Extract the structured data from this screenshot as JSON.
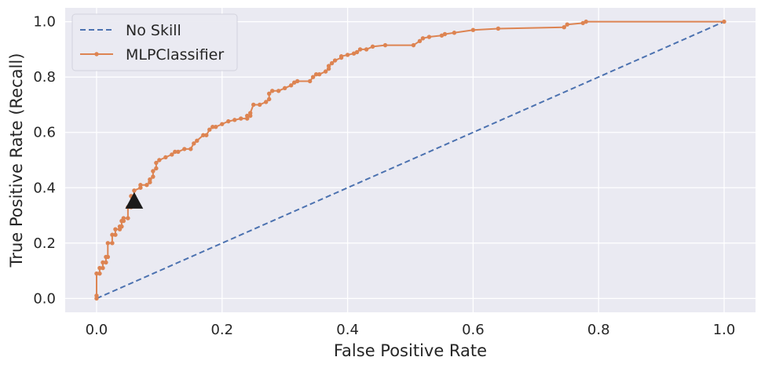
{
  "chart_data": {
    "type": "line",
    "xlabel": "False Positive Rate",
    "ylabel": "True Positive Rate (Recall)",
    "xlim": [
      -0.05,
      1.05
    ],
    "ylim": [
      -0.05,
      1.05
    ],
    "xticks": [
      0.0,
      0.2,
      0.4,
      0.6,
      0.8,
      1.0
    ],
    "xtick_labels": [
      "0.0",
      "0.2",
      "0.4",
      "0.6",
      "0.8",
      "1.0"
    ],
    "yticks": [
      0.0,
      0.2,
      0.4,
      0.6,
      0.8,
      1.0
    ],
    "ytick_labels": [
      "0.0",
      "0.2",
      "0.4",
      "0.6",
      "0.8",
      "1.0"
    ],
    "grid": true,
    "legend_position": "top-left",
    "series": [
      {
        "name": "No Skill",
        "style": "dashed",
        "color": "#4c72b0",
        "x": [
          0,
          1
        ],
        "y": [
          0,
          1
        ]
      },
      {
        "name": "MLPClassifier",
        "style": "solid-with-markers",
        "color": "#dd8452",
        "x": [
          0,
          0,
          0,
          0.005,
          0.005,
          0.01,
          0.01,
          0.015,
          0.015,
          0.018,
          0.018,
          0.025,
          0.025,
          0.03,
          0.03,
          0.037,
          0.037,
          0.04,
          0.04,
          0.043,
          0.043,
          0.05,
          0.05,
          0.055,
          0.055,
          0.06,
          0.06,
          0.07,
          0.07,
          0.08,
          0.085,
          0.085,
          0.09,
          0.09,
          0.095,
          0.095,
          0.1,
          0.11,
          0.12,
          0.125,
          0.13,
          0.14,
          0.15,
          0.155,
          0.16,
          0.17,
          0.175,
          0.18,
          0.185,
          0.19,
          0.2,
          0.21,
          0.22,
          0.23,
          0.24,
          0.24,
          0.245,
          0.245,
          0.25,
          0.26,
          0.27,
          0.275,
          0.275,
          0.28,
          0.29,
          0.3,
          0.31,
          0.315,
          0.32,
          0.34,
          0.345,
          0.35,
          0.355,
          0.365,
          0.37,
          0.37,
          0.375,
          0.38,
          0.39,
          0.39,
          0.4,
          0.41,
          0.415,
          0.42,
          0.43,
          0.44,
          0.46,
          0.505,
          0.515,
          0.52,
          0.53,
          0.55,
          0.555,
          0.57,
          0.6,
          0.64,
          0.745,
          0.75,
          0.775,
          0.78,
          1.0
        ],
        "y": [
          0,
          0.01,
          0.09,
          0.09,
          0.11,
          0.11,
          0.13,
          0.13,
          0.15,
          0.15,
          0.2,
          0.2,
          0.23,
          0.23,
          0.25,
          0.25,
          0.26,
          0.26,
          0.28,
          0.28,
          0.29,
          0.29,
          0.33,
          0.33,
          0.37,
          0.37,
          0.39,
          0.4,
          0.41,
          0.41,
          0.42,
          0.43,
          0.44,
          0.46,
          0.47,
          0.49,
          0.5,
          0.51,
          0.52,
          0.53,
          0.53,
          0.54,
          0.54,
          0.56,
          0.57,
          0.59,
          0.59,
          0.61,
          0.62,
          0.62,
          0.63,
          0.64,
          0.645,
          0.65,
          0.65,
          0.66,
          0.66,
          0.67,
          0.7,
          0.7,
          0.71,
          0.72,
          0.74,
          0.75,
          0.75,
          0.76,
          0.77,
          0.78,
          0.785,
          0.785,
          0.8,
          0.81,
          0.81,
          0.82,
          0.83,
          0.84,
          0.85,
          0.86,
          0.87,
          0.875,
          0.88,
          0.885,
          0.89,
          0.9,
          0.9,
          0.91,
          0.915,
          0.915,
          0.93,
          0.94,
          0.945,
          0.95,
          0.955,
          0.96,
          0.97,
          0.975,
          0.98,
          0.99,
          0.995,
          1.0,
          1.0
        ]
      }
    ],
    "annotations": [
      {
        "type": "marker",
        "shape": "triangle",
        "color": "#1a1a1a",
        "x": 0.06,
        "y": 0.35
      }
    ]
  }
}
